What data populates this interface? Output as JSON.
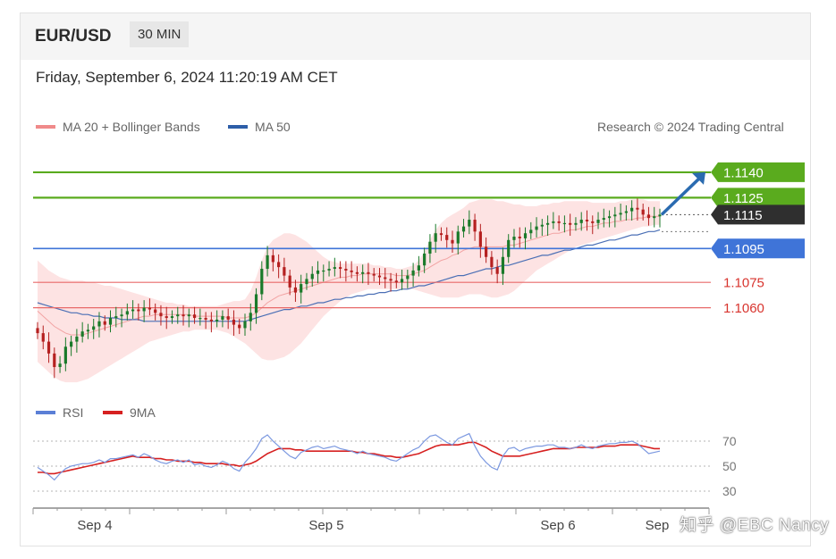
{
  "header": {
    "pair": "EUR/USD",
    "timeframe": "30 MIN"
  },
  "datetime": "Friday, September 6, 2024 11:20:19 AM CET",
  "legend": {
    "bollinger": {
      "label": "MA 20 + Bollinger Bands",
      "color": "#f08a8a"
    },
    "ma50": {
      "label": "MA 50",
      "color": "#2d5ea8"
    },
    "rsi": {
      "label": "RSI",
      "color": "#5b7fd6"
    },
    "rsi_ma": {
      "label": "9MA",
      "color": "#d62020"
    }
  },
  "credit": "Research © 2024 Trading Central",
  "watermark": "知乎 @EBC  Nancy",
  "colors": {
    "resistance": "#5aab1e",
    "pivot": "#3f74d8",
    "support": "#e86a6a",
    "last": "#2f2f2f",
    "up": "#1a7a2a",
    "down": "#b52020"
  },
  "chart_data": [
    {
      "type": "candlestick",
      "title": "EUR/USD",
      "timeframe": "30 MIN",
      "ylim": [
        1.1015,
        1.116
      ],
      "x_ticks": [
        "Sep 4",
        "Sep 5",
        "Sep 6",
        "Sep"
      ],
      "levels": [
        {
          "label": "1.1140",
          "value": 1.114,
          "kind": "resistance"
        },
        {
          "label": "1.1125",
          "value": 1.1125,
          "kind": "resistance"
        },
        {
          "label": "1.1115",
          "value": 1.1115,
          "kind": "last"
        },
        {
          "label": "1.1095",
          "value": 1.1095,
          "kind": "pivot"
        },
        {
          "label": "1.1075",
          "value": 1.1075,
          "kind": "support"
        },
        {
          "label": "1.1060",
          "value": 1.106,
          "kind": "support"
        }
      ],
      "trend_arrow": {
        "from": 1.1115,
        "to": 1.114
      },
      "close": [
        1.1045,
        1.104,
        1.1033,
        1.1025,
        1.1027,
        1.1037,
        1.104,
        1.1043,
        1.1046,
        1.1047,
        1.1049,
        1.1052,
        1.105,
        1.1054,
        1.1055,
        1.1056,
        1.1058,
        1.1059,
        1.1058,
        1.106,
        1.1059,
        1.1057,
        1.1055,
        1.1054,
        1.1055,
        1.1056,
        1.1055,
        1.1056,
        1.1054,
        1.1054,
        1.1053,
        1.1052,
        1.1053,
        1.1055,
        1.1053,
        1.105,
        1.1048,
        1.1052,
        1.1057,
        1.1068,
        1.1083,
        1.1091,
        1.1087,
        1.1084,
        1.1079,
        1.1072,
        1.1069,
        1.1074,
        1.1077,
        1.108,
        1.1082,
        1.1082,
        1.1083,
        1.1084,
        1.1083,
        1.1082,
        1.1081,
        1.108,
        1.1081,
        1.108,
        1.1079,
        1.1078,
        1.1077,
        1.1076,
        1.1075,
        1.1077,
        1.1079,
        1.1082,
        1.1085,
        1.1092,
        1.1099,
        1.1104,
        1.1103,
        1.11,
        1.1098,
        1.1105,
        1.1108,
        1.1112,
        1.1105,
        1.1096,
        1.109,
        1.1084,
        1.108,
        1.109,
        1.11,
        1.1102,
        1.1101,
        1.1104,
        1.1106,
        1.1108,
        1.1109,
        1.111,
        1.1111,
        1.111,
        1.111,
        1.1109,
        1.111,
        1.1112,
        1.1111,
        1.111,
        1.1112,
        1.1113,
        1.1114,
        1.1115,
        1.1116,
        1.1117,
        1.1119,
        1.1118,
        1.1115,
        1.1113,
        1.1114,
        1.1115
      ],
      "ma20_upper": [
        1.1088,
        1.1085,
        1.1082,
        1.108,
        1.1078,
        1.1077,
        1.1076,
        1.1076,
        1.1076,
        1.1075,
        1.1075,
        1.1074,
        1.1073,
        1.1073,
        1.1072,
        1.1071,
        1.107,
        1.1069,
        1.1068,
        1.1067,
        1.1066,
        1.1065,
        1.1064,
        1.1063,
        1.1063,
        1.1062,
        1.1062,
        1.1061,
        1.1061,
        1.1061,
        1.1061,
        1.1061,
        1.1061,
        1.1062,
        1.1063,
        1.1064,
        1.1064,
        1.1065,
        1.107,
        1.1078,
        1.1088,
        1.1096,
        1.11,
        1.1102,
        1.1104,
        1.1104,
        1.1103,
        1.1101,
        1.1099,
        1.1096,
        1.1093,
        1.109,
        1.1088,
        1.1087,
        1.1086,
        1.1086,
        1.1086,
        1.1086,
        1.1086,
        1.1086,
        1.1085,
        1.1085,
        1.1084,
        1.1084,
        1.1083,
        1.1083,
        1.1084,
        1.1085,
        1.1088,
        1.1093,
        1.11,
        1.1106,
        1.111,
        1.1113,
        1.1115,
        1.1117,
        1.1119,
        1.1122,
        1.1123,
        1.1124,
        1.1124,
        1.1124,
        1.1123,
        1.1123,
        1.1122,
        1.1121,
        1.1121,
        1.112,
        1.112,
        1.112,
        1.1121,
        1.1121,
        1.1122,
        1.1122,
        1.1123,
        1.1123,
        1.1123,
        1.1123,
        1.1123,
        1.1122,
        1.1122,
        1.1122,
        1.1122,
        1.1122,
        1.1123,
        1.1123,
        1.1124,
        1.1124,
        1.1124,
        1.1123,
        1.1123,
        1.1123
      ],
      "ma20_mid": [
        1.1058,
        1.1055,
        1.1052,
        1.1049,
        1.1047,
        1.1045,
        1.1044,
        1.1044,
        1.1044,
        1.1045,
        1.1046,
        1.1047,
        1.1048,
        1.1049,
        1.105,
        1.1051,
        1.1052,
        1.1053,
        1.1054,
        1.1055,
        1.1055,
        1.1056,
        1.1056,
        1.1056,
        1.1056,
        1.1056,
        1.1056,
        1.1056,
        1.1055,
        1.1055,
        1.1055,
        1.1055,
        1.1055,
        1.1055,
        1.1054,
        1.1054,
        1.1054,
        1.1054,
        1.1055,
        1.1057,
        1.106,
        1.1063,
        1.1065,
        1.1067,
        1.1068,
        1.1069,
        1.107,
        1.1071,
        1.1072,
        1.1073,
        1.1074,
        1.1075,
        1.1076,
        1.1077,
        1.1078,
        1.1078,
        1.1079,
        1.1079,
        1.108,
        1.108,
        1.108,
        1.108,
        1.108,
        1.108,
        1.1079,
        1.1079,
        1.1079,
        1.108,
        1.1081,
        1.1082,
        1.1084,
        1.1086,
        1.1088,
        1.1089,
        1.1091,
        1.1092,
        1.1094,
        1.1095,
        1.1096,
        1.1096,
        1.1096,
        1.1096,
        1.1096,
        1.1096,
        1.1097,
        1.1097,
        1.1098,
        1.1099,
        1.11,
        1.1101,
        1.1102,
        1.1103,
        1.1104,
        1.1104,
        1.1105,
        1.1106,
        1.1106,
        1.1107,
        1.1108,
        1.1108,
        1.1109,
        1.111,
        1.111,
        1.1111,
        1.1111,
        1.1112,
        1.1112,
        1.1113,
        1.1113,
        1.1114,
        1.1114,
        1.1114
      ],
      "ma20_lower": [
        1.1028,
        1.1025,
        1.1022,
        1.1019,
        1.1017,
        1.1016,
        1.1016,
        1.1016,
        1.1017,
        1.1018,
        1.102,
        1.1022,
        1.1024,
        1.1026,
        1.1028,
        1.103,
        1.1032,
        1.1034,
        1.1036,
        1.1038,
        1.104,
        1.1041,
        1.1042,
        1.1043,
        1.1044,
        1.1045,
        1.1046,
        1.1046,
        1.1047,
        1.1047,
        1.1047,
        1.1047,
        1.1047,
        1.1046,
        1.1045,
        1.1043,
        1.1041,
        1.1039,
        1.1036,
        1.1033,
        1.103,
        1.1029,
        1.1029,
        1.103,
        1.1031,
        1.1033,
        1.1036,
        1.1039,
        1.1043,
        1.1047,
        1.1051,
        1.1055,
        1.1058,
        1.1061,
        1.1064,
        1.1066,
        1.1068,
        1.1069,
        1.107,
        1.1071,
        1.1071,
        1.1071,
        1.1071,
        1.1071,
        1.1071,
        1.1071,
        1.1071,
        1.1071,
        1.107,
        1.1069,
        1.1068,
        1.1067,
        1.1066,
        1.1066,
        1.1066,
        1.1066,
        1.1067,
        1.1068,
        1.1068,
        1.1068,
        1.1067,
        1.1066,
        1.1066,
        1.1067,
        1.1068,
        1.107,
        1.1073,
        1.1076,
        1.1079,
        1.1082,
        1.1084,
        1.1086,
        1.1088,
        1.109,
        1.1092,
        1.1094,
        1.1096,
        1.1097,
        1.1098,
        1.1099,
        1.11,
        1.1101,
        1.1102,
        1.1103,
        1.1104,
        1.1105,
        1.1106,
        1.1107,
        1.1108,
        1.1108,
        1.1109,
        1.1109
      ],
      "ma50": [
        1.1063,
        1.1062,
        1.1061,
        1.106,
        1.1059,
        1.1058,
        1.1057,
        1.1057,
        1.1056,
        1.1056,
        1.1055,
        1.1055,
        1.1054,
        1.1054,
        1.1054,
        1.1053,
        1.1053,
        1.1053,
        1.1053,
        1.1052,
        1.1052,
        1.1052,
        1.1052,
        1.1052,
        1.1052,
        1.1052,
        1.1052,
        1.1052,
        1.1052,
        1.1052,
        1.1052,
        1.1052,
        1.1052,
        1.1052,
        1.1052,
        1.1052,
        1.1052,
        1.1052,
        1.1053,
        1.1054,
        1.1055,
        1.1056,
        1.1057,
        1.1058,
        1.1059,
        1.1059,
        1.106,
        1.1061,
        1.1061,
        1.1062,
        1.1063,
        1.1063,
        1.1064,
        1.1065,
        1.1065,
        1.1066,
        1.1066,
        1.1067,
        1.1067,
        1.1068,
        1.1068,
        1.1069,
        1.1069,
        1.107,
        1.107,
        1.1071,
        1.1071,
        1.1072,
        1.1073,
        1.1073,
        1.1074,
        1.1075,
        1.1076,
        1.1077,
        1.1078,
        1.1079,
        1.1079,
        1.108,
        1.1081,
        1.1082,
        1.1083,
        1.1083,
        1.1084,
        1.1085,
        1.1085,
        1.1086,
        1.1087,
        1.1088,
        1.1089,
        1.109,
        1.1091,
        1.1091,
        1.1092,
        1.1093,
        1.1094,
        1.1094,
        1.1095,
        1.1096,
        1.1097,
        1.1097,
        1.1098,
        1.1099,
        1.11,
        1.11,
        1.1101,
        1.1102,
        1.1103,
        1.1103,
        1.1104,
        1.1105,
        1.1105,
        1.1106
      ],
      "rsi_ylim": [
        20,
        80
      ],
      "rsi_ticks": [
        "70",
        "50",
        "30"
      ],
      "rsi": [
        49,
        46,
        43,
        39,
        44,
        48,
        50,
        51,
        52,
        52,
        53,
        55,
        53,
        56,
        56,
        57,
        58,
        59,
        57,
        60,
        58,
        55,
        53,
        52,
        54,
        55,
        53,
        55,
        51,
        52,
        50,
        49,
        51,
        54,
        52,
        48,
        46,
        53,
        58,
        64,
        72,
        75,
        70,
        66,
        62,
        58,
        56,
        61,
        63,
        65,
        66,
        64,
        65,
        66,
        64,
        63,
        62,
        60,
        62,
        60,
        59,
        58,
        57,
        55,
        54,
        57,
        60,
        63,
        65,
        70,
        74,
        75,
        72,
        69,
        67,
        72,
        74,
        76,
        66,
        58,
        53,
        49,
        47,
        58,
        64,
        65,
        62,
        64,
        65,
        66,
        66,
        67,
        67,
        65,
        65,
        64,
        65,
        67,
        65,
        64,
        66,
        67,
        68,
        68,
        69,
        69,
        70,
        68,
        64,
        60,
        61,
        62
      ],
      "rsi_ma": [
        45,
        45,
        44,
        44,
        45,
        46,
        47,
        48,
        49,
        50,
        51,
        52,
        53,
        54,
        55,
        56,
        57,
        58,
        57,
        57,
        57,
        56,
        56,
        55,
        55,
        54,
        54,
        54,
        53,
        53,
        52,
        52,
        52,
        52,
        51,
        51,
        50,
        51,
        52,
        54,
        57,
        60,
        62,
        64,
        64,
        64,
        63,
        63,
        62,
        62,
        62,
        62,
        62,
        62,
        62,
        62,
        62,
        61,
        61,
        60,
        60,
        59,
        58,
        58,
        57,
        57,
        58,
        59,
        60,
        62,
        64,
        66,
        67,
        67,
        67,
        67,
        68,
        69,
        69,
        67,
        65,
        62,
        60,
        58,
        58,
        58,
        58,
        59,
        60,
        61,
        62,
        63,
        64,
        64,
        64,
        64,
        65,
        65,
        65,
        65,
        65,
        66,
        66,
        66,
        67,
        67,
        67,
        67,
        66,
        65,
        64,
        64
      ]
    }
  ]
}
